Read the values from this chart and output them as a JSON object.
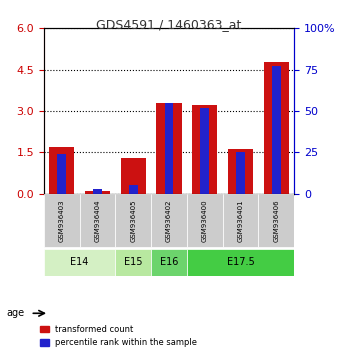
{
  "title": "GDS4591 / 1460363_at",
  "samples": [
    "GSM936403",
    "GSM936404",
    "GSM936405",
    "GSM936402",
    "GSM936400",
    "GSM936401",
    "GSM936406"
  ],
  "red_values": [
    1.7,
    0.08,
    1.3,
    3.3,
    3.2,
    1.62,
    4.78
  ],
  "blue_percentiles": [
    24,
    3,
    5,
    55,
    52,
    25,
    77
  ],
  "age_groups": [
    {
      "label": "E14",
      "start": 0,
      "end": 2,
      "color": "#d4f0c4"
    },
    {
      "label": "E15",
      "start": 2,
      "end": 3,
      "color": "#b8e8a0"
    },
    {
      "label": "E16",
      "start": 3,
      "end": 4,
      "color": "#6cd46c"
    },
    {
      "label": "E17.5",
      "start": 4,
      "end": 7,
      "color": "#44cc44"
    }
  ],
  "left_ylim": [
    0,
    6
  ],
  "left_yticks": [
    0,
    1.5,
    3,
    4.5,
    6
  ],
  "right_ylim": [
    0,
    100
  ],
  "right_yticks": [
    0,
    25,
    50,
    75,
    100
  ],
  "bar_width": 0.35,
  "red_color": "#cc1111",
  "blue_color": "#2222cc",
  "sample_bg_color": "#cccccc",
  "legend_red_label": "transformed count",
  "legend_blue_label": "percentile rank within the sample",
  "age_label": "age",
  "title_color": "#333333",
  "left_axis_color": "#cc0000",
  "right_axis_color": "#0000cc"
}
